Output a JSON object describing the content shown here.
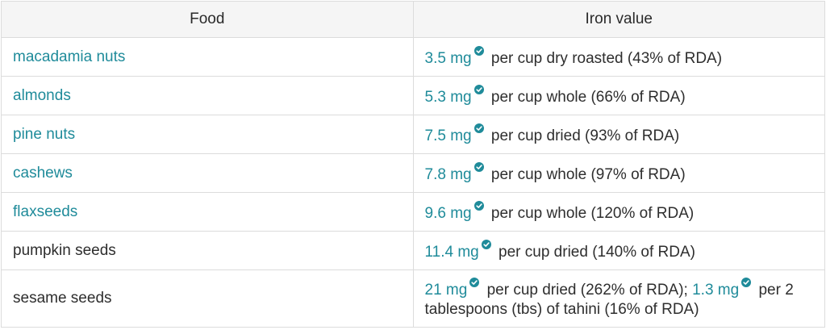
{
  "table": {
    "headers": [
      "Food",
      "Iron value"
    ],
    "rows": [
      {
        "food": "macadamia nuts",
        "food_link": true,
        "values": [
          {
            "mg": "3.5 mg",
            "desc": " per cup dry roasted (43% of RDA)"
          }
        ]
      },
      {
        "food": "almonds",
        "food_link": true,
        "values": [
          {
            "mg": "5.3 mg",
            "desc": " per cup whole (66% of RDA)"
          }
        ]
      },
      {
        "food": "pine nuts",
        "food_link": true,
        "values": [
          {
            "mg": "7.5 mg",
            "desc": " per cup dried (93% of RDA)"
          }
        ]
      },
      {
        "food": "cashews",
        "food_link": true,
        "values": [
          {
            "mg": "7.8 mg",
            "desc": " per cup whole (97% of RDA)"
          }
        ]
      },
      {
        "food": "flaxseeds",
        "food_link": true,
        "values": [
          {
            "mg": "9.6 mg",
            "desc": " per cup whole (120% of RDA)"
          }
        ]
      },
      {
        "food": "pumpkin seeds",
        "food_link": false,
        "values": [
          {
            "mg": "11.4 mg",
            "desc": " per cup dried (140% of RDA)"
          }
        ]
      },
      {
        "food": "sesame seeds",
        "food_link": false,
        "values": [
          {
            "mg": "21 mg",
            "desc": " per cup dried (262% of RDA); "
          },
          {
            "mg": "1.3 mg",
            "desc": " per 2 tablespoons (tbs) of tahini (16% of RDA)"
          }
        ]
      }
    ]
  },
  "colors": {
    "link": "#1f8b9a",
    "text": "#2e2e2e",
    "header_bg": "#f5f5f5",
    "border": "#dcdcdc",
    "check_badge": "#1f8b9a"
  },
  "icons": {
    "verified": "check-badge-icon"
  }
}
